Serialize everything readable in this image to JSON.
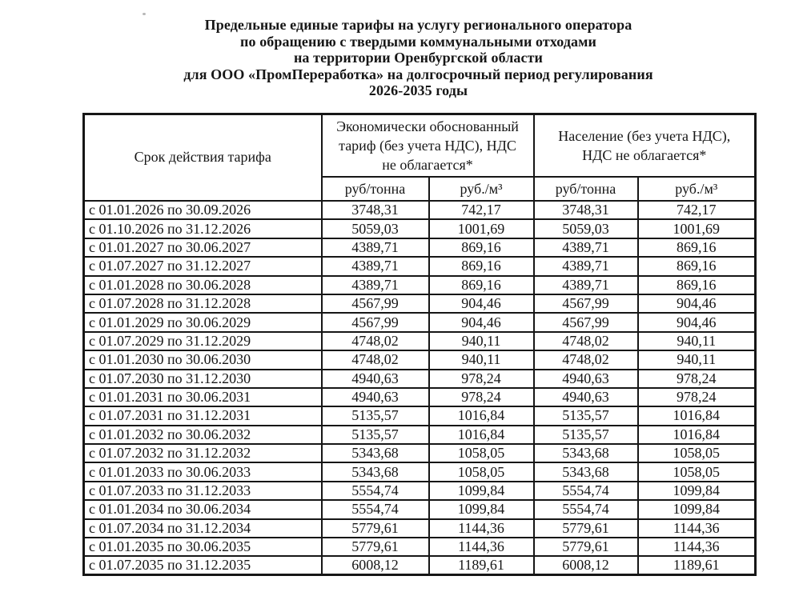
{
  "colors": {
    "ink": "#161616",
    "paper": "#ffffff"
  },
  "title": {
    "lines": [
      "Предельные единые тарифы на услугу регионального оператора",
      "по обращению с твердыми коммунальными отходами",
      "на территории Оренбургской области",
      "для ООО «ПромПереработка» на долгосрочный период регулирования",
      "2026-2035 годы"
    ]
  },
  "table": {
    "headers": {
      "period": "Срок действия тарифа",
      "economic": "Экономически обоснованный тариф (без учета НДС), НДС не облагается*",
      "population": "Население (без учета НДС), НДС не облагается*",
      "unit_per_ton": "руб/тонна",
      "unit_per_m3": "руб./м³"
    },
    "rows": [
      {
        "period": "с 01.01.2026 по 30.09.2026",
        "eco_rub_ton": "3748,31",
        "eco_rub_m3": "742,17",
        "pop_rub_ton": "3748,31",
        "pop_rub_m3": "742,17"
      },
      {
        "period": "с 01.10.2026 по 31.12.2026",
        "eco_rub_ton": "5059,03",
        "eco_rub_m3": "1001,69",
        "pop_rub_ton": "5059,03",
        "pop_rub_m3": "1001,69"
      },
      {
        "period": "с 01.01.2027 по 30.06.2027",
        "eco_rub_ton": "4389,71",
        "eco_rub_m3": "869,16",
        "pop_rub_ton": "4389,71",
        "pop_rub_m3": "869,16"
      },
      {
        "period": "с 01.07.2027 по 31.12.2027",
        "eco_rub_ton": "4389,71",
        "eco_rub_m3": "869,16",
        "pop_rub_ton": "4389,71",
        "pop_rub_m3": "869,16"
      },
      {
        "period": "с 01.01.2028 по 30.06.2028",
        "eco_rub_ton": "4389,71",
        "eco_rub_m3": "869,16",
        "pop_rub_ton": "4389,71",
        "pop_rub_m3": "869,16"
      },
      {
        "period": "с 01.07.2028 по 31.12.2028",
        "eco_rub_ton": "4567,99",
        "eco_rub_m3": "904,46",
        "pop_rub_ton": "4567,99",
        "pop_rub_m3": "904,46"
      },
      {
        "period": "с 01.01.2029 по 30.06.2029",
        "eco_rub_ton": "4567,99",
        "eco_rub_m3": "904,46",
        "pop_rub_ton": "4567,99",
        "pop_rub_m3": "904,46"
      },
      {
        "period": "с 01.07.2029 по 31.12.2029",
        "eco_rub_ton": "4748,02",
        "eco_rub_m3": "940,11",
        "pop_rub_ton": "4748,02",
        "pop_rub_m3": "940,11"
      },
      {
        "period": "с 01.01.2030 по 30.06.2030",
        "eco_rub_ton": "4748,02",
        "eco_rub_m3": "940,11",
        "pop_rub_ton": "4748,02",
        "pop_rub_m3": "940,11"
      },
      {
        "period": "с 01.07.2030 по 31.12.2030",
        "eco_rub_ton": "4940,63",
        "eco_rub_m3": "978,24",
        "pop_rub_ton": "4940,63",
        "pop_rub_m3": "978,24"
      },
      {
        "period": "с 01.01.2031 по 30.06.2031",
        "eco_rub_ton": "4940,63",
        "eco_rub_m3": "978,24",
        "pop_rub_ton": "4940,63",
        "pop_rub_m3": "978,24"
      },
      {
        "period": "с 01.07.2031 по 31.12.2031",
        "eco_rub_ton": "5135,57",
        "eco_rub_m3": "1016,84",
        "pop_rub_ton": "5135,57",
        "pop_rub_m3": "1016,84"
      },
      {
        "period": "с 01.01.2032 по 30.06.2032",
        "eco_rub_ton": "5135,57",
        "eco_rub_m3": "1016,84",
        "pop_rub_ton": "5135,57",
        "pop_rub_m3": "1016,84"
      },
      {
        "period": "с 01.07.2032 по 31.12.2032",
        "eco_rub_ton": "5343,68",
        "eco_rub_m3": "1058,05",
        "pop_rub_ton": "5343,68",
        "pop_rub_m3": "1058,05"
      },
      {
        "period": "с 01.01.2033 по 30.06.2033",
        "eco_rub_ton": "5343,68",
        "eco_rub_m3": "1058,05",
        "pop_rub_ton": "5343,68",
        "pop_rub_m3": "1058,05"
      },
      {
        "period": "с 01.07.2033 по 31.12.2033",
        "eco_rub_ton": "5554,74",
        "eco_rub_m3": "1099,84",
        "pop_rub_ton": "5554,74",
        "pop_rub_m3": "1099,84"
      },
      {
        "period": "с 01.01.2034 по 30.06.2034",
        "eco_rub_ton": "5554,74",
        "eco_rub_m3": "1099,84",
        "pop_rub_ton": "5554,74",
        "pop_rub_m3": "1099,84"
      },
      {
        "period": "с 01.07.2034 по 31.12.2034",
        "eco_rub_ton": "5779,61",
        "eco_rub_m3": "1144,36",
        "pop_rub_ton": "5779,61",
        "pop_rub_m3": "1144,36"
      },
      {
        "period": "с 01.01.2035 по 30.06.2035",
        "eco_rub_ton": "5779,61",
        "eco_rub_m3": "1144,36",
        "pop_rub_ton": "5779,61",
        "pop_rub_m3": "1144,36"
      },
      {
        "period": "с 01.07.2035 по 31.12.2035",
        "eco_rub_ton": "6008,12",
        "eco_rub_m3": "1189,61",
        "pop_rub_ton": "6008,12",
        "pop_rub_m3": "1189,61"
      }
    ]
  }
}
